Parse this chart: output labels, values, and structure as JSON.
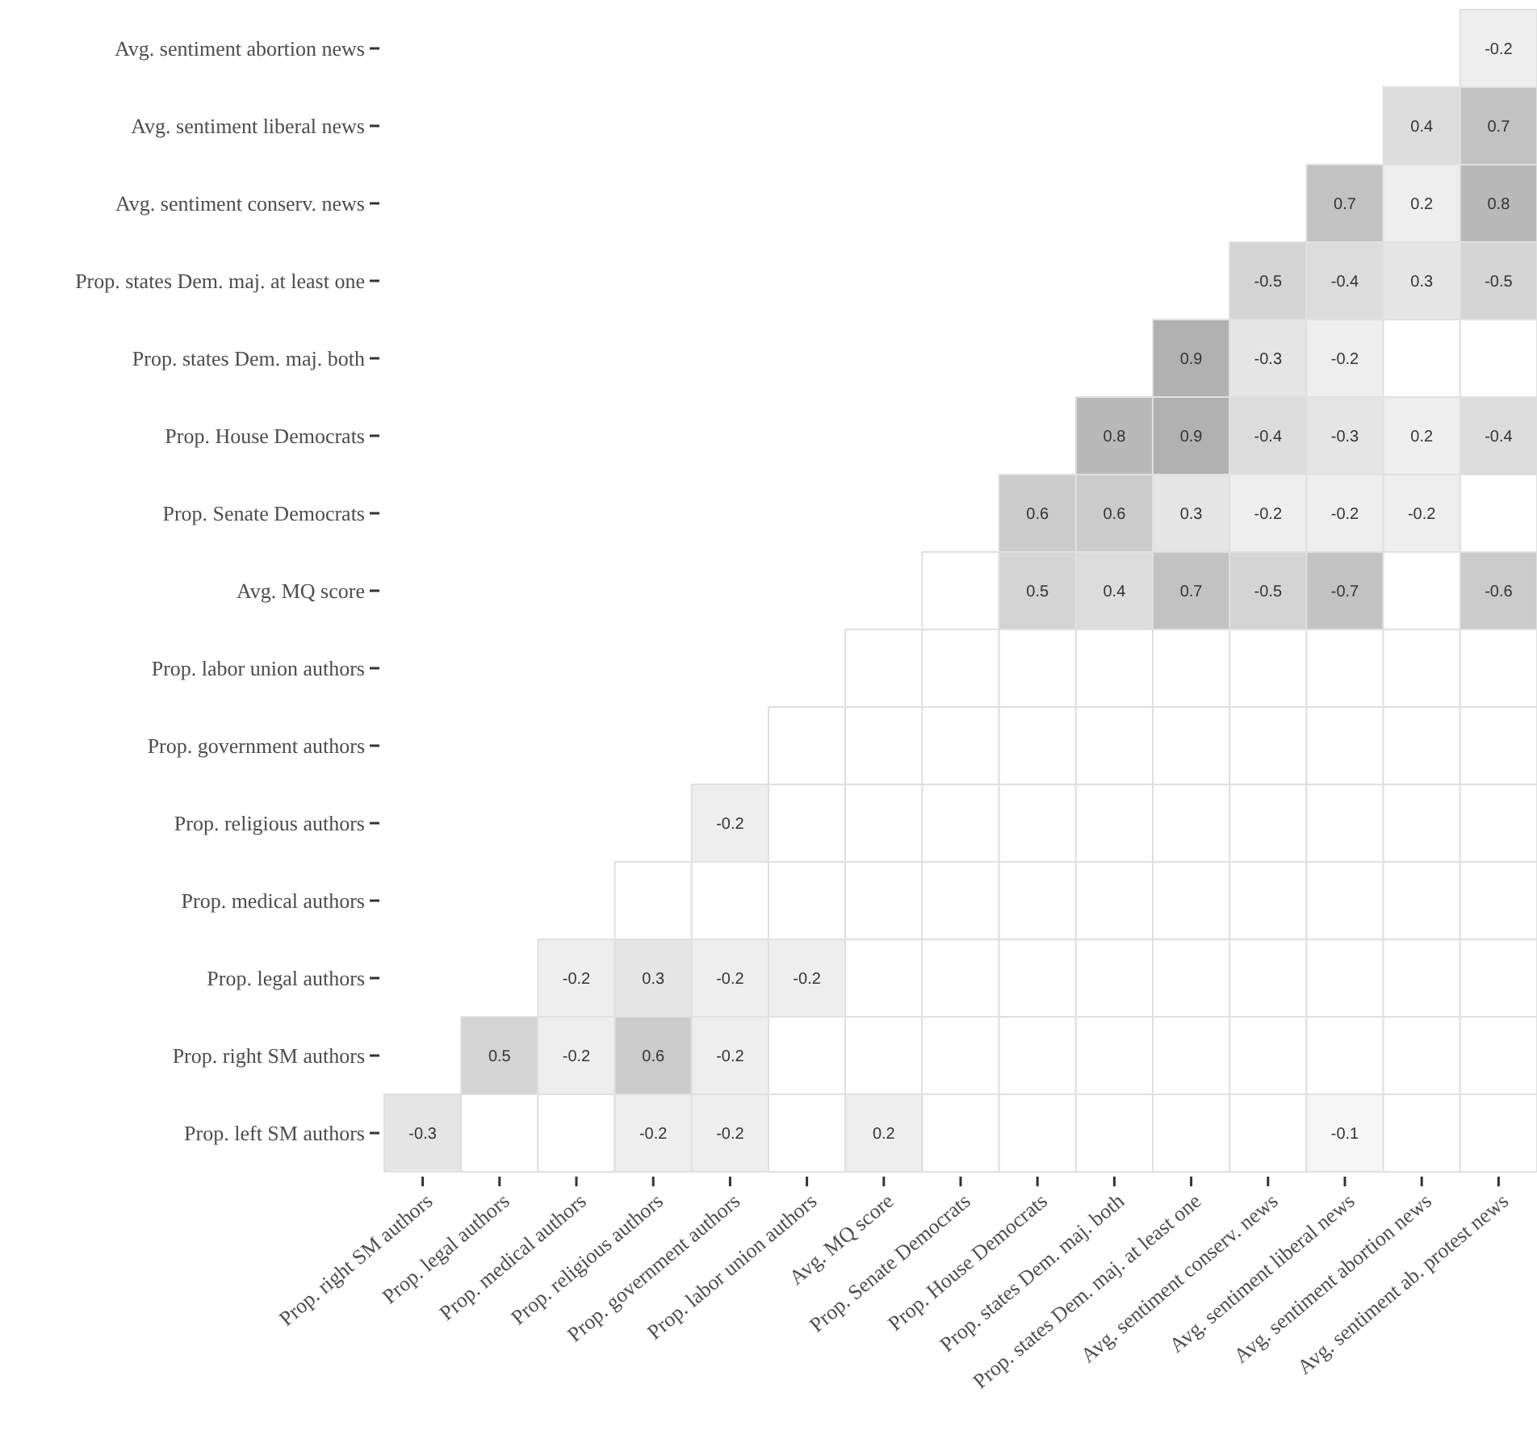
{
  "chart_data": {
    "type": "heatmap",
    "categories": [
      "Prop. right SM authors",
      "Prop. legal authors",
      "Prop. medical authors",
      "Prop. religious authors",
      "Prop. government authors",
      "Prop. labor union authors",
      "Avg. MQ score",
      "Prop. Senate Democrats",
      "Prop. House Democrats",
      "Prop. states Dem. maj. both",
      "Prop. states Dem. maj. at least one",
      "Avg. sentiment conserv. news",
      "Avg. sentiment liberal news",
      "Avg. sentiment abortion news",
      "Avg. sentiment ab. protest news"
    ],
    "y_categories": [
      "Avg. sentiment abortion news",
      "Avg. sentiment liberal news",
      "Avg. sentiment conserv. news",
      "Prop. states Dem. maj. at least one",
      "Prop. states Dem. maj. both",
      "Prop. House Democrats",
      "Prop. Senate Democrats",
      "Avg. MQ score",
      "Prop. labor union authors",
      "Prop. government authors",
      "Prop. religious authors",
      "Prop. medical authors",
      "Prop. legal authors",
      "Prop. right SM authors",
      "Prop. left SM authors"
    ],
    "cells": [
      [
        null,
        null,
        null,
        null,
        null,
        null,
        null,
        null,
        null,
        null,
        null,
        null,
        null,
        null,
        -0.2
      ],
      [
        null,
        null,
        null,
        null,
        null,
        null,
        null,
        null,
        null,
        null,
        null,
        null,
        null,
        0.4,
        0.7
      ],
      [
        null,
        null,
        null,
        null,
        null,
        null,
        null,
        null,
        null,
        null,
        null,
        null,
        0.7,
        0.2,
        0.8
      ],
      [
        null,
        null,
        null,
        null,
        null,
        null,
        null,
        null,
        null,
        null,
        null,
        -0.5,
        -0.4,
        0.3,
        -0.5
      ],
      [
        null,
        null,
        null,
        null,
        null,
        null,
        null,
        null,
        null,
        null,
        0.9,
        -0.3,
        -0.2,
        null,
        null
      ],
      [
        null,
        null,
        null,
        null,
        null,
        null,
        null,
        null,
        null,
        0.8,
        0.9,
        -0.4,
        -0.3,
        0.2,
        -0.4
      ],
      [
        null,
        null,
        null,
        null,
        null,
        null,
        null,
        null,
        0.6,
        0.6,
        0.3,
        -0.2,
        -0.2,
        -0.2,
        null
      ],
      [
        null,
        null,
        null,
        null,
        null,
        null,
        null,
        null,
        0.5,
        0.4,
        0.7,
        -0.5,
        -0.7,
        null,
        -0.6
      ],
      [
        null,
        null,
        null,
        null,
        null,
        null,
        null,
        null,
        null,
        null,
        null,
        null,
        null,
        null,
        null
      ],
      [
        null,
        null,
        null,
        null,
        null,
        null,
        null,
        null,
        null,
        null,
        null,
        null,
        null,
        null,
        null
      ],
      [
        null,
        null,
        null,
        null,
        -0.2,
        null,
        null,
        null,
        null,
        null,
        null,
        null,
        null,
        null,
        null
      ],
      [
        null,
        null,
        null,
        null,
        null,
        null,
        null,
        null,
        null,
        null,
        null,
        null,
        null,
        null,
        null
      ],
      [
        null,
        null,
        -0.2,
        0.3,
        -0.2,
        -0.2,
        null,
        null,
        null,
        null,
        null,
        null,
        null,
        null,
        null
      ],
      [
        null,
        0.5,
        -0.2,
        0.6,
        -0.2,
        null,
        null,
        null,
        null,
        null,
        null,
        null,
        null,
        null,
        null
      ],
      [
        -0.3,
        null,
        null,
        -0.2,
        -0.2,
        null,
        0.2,
        null,
        null,
        null,
        null,
        null,
        -0.1,
        null,
        null
      ]
    ],
    "data_labels": true
  }
}
